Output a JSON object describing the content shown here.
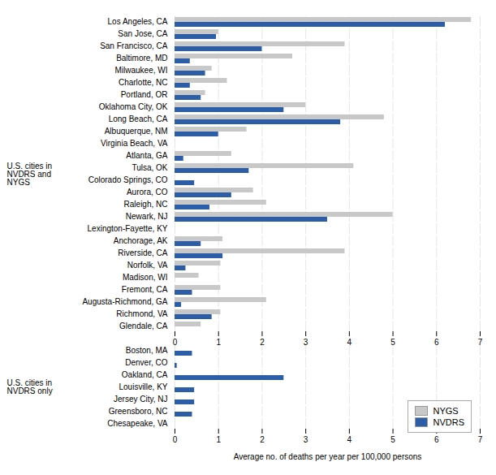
{
  "chart_data": {
    "type": "bar",
    "orientation": "horizontal",
    "categories": [
      "Los Angeles, CA",
      "San Jose, CA",
      "San Francisco, CA",
      "Baltimore, MD",
      "Milwaukee, WI",
      "Charlotte, NC",
      "Portland, OR",
      "Oklahoma City, OK",
      "Long Beach, CA",
      "Albuquerque, NM",
      "Virginia Beach, VA",
      "Atlanta, GA",
      "Tulsa, OK",
      "Colorado Springs, CO",
      "Aurora, CO",
      "Raleigh, NC",
      "Newark, NJ",
      "Lexington-Fayette, KY",
      "Anchorage, AK",
      "Riverside, CA",
      "Norfolk, VA",
      "Madison, WI",
      "Fremont, CA",
      "Augusta-Richmond, GA",
      "Richmond, VA",
      "Glendale, CA",
      "Boston, MA",
      "Denver, CO",
      "Oakland, CA",
      "Louisville, KY",
      "Jersey City, NJ",
      "Greensboro, NC",
      "Chesapeake, VA"
    ],
    "series": [
      {
        "name": "NYGS",
        "color": "#c8c8c8",
        "values": [
          6.8,
          1.0,
          3.9,
          2.7,
          0.85,
          1.2,
          0.7,
          3.0,
          4.8,
          1.65,
          0.0,
          1.3,
          4.1,
          0.0,
          1.8,
          2.1,
          5.0,
          0.0,
          1.1,
          3.9,
          1.05,
          0.55,
          1.05,
          2.1,
          1.05,
          0.6,
          0.0,
          0.0,
          0.0,
          0.0,
          0.0,
          0.0,
          0.0
        ]
      },
      {
        "name": "NVDRS",
        "color": "#2b5ea7",
        "values": [
          6.2,
          0.95,
          2.0,
          0.35,
          0.7,
          0.35,
          0.6,
          2.5,
          3.8,
          1.0,
          0.0,
          0.2,
          1.7,
          0.45,
          1.3,
          0.8,
          3.5,
          0.0,
          0.6,
          1.1,
          0.25,
          0.0,
          0.4,
          0.15,
          0.85,
          0.0,
          0.4,
          0.05,
          2.5,
          0.45,
          0.45,
          0.4,
          0.0
        ]
      }
    ],
    "xlabel": "Average no. of deaths per year per 100,000 persons",
    "xlim": [
      0,
      7
    ],
    "xticks": [
      0,
      1,
      2,
      3,
      4,
      5,
      6,
      7
    ],
    "grid": true,
    "legend": "lower right",
    "annotations": [
      {
        "text": "U.S. cities in\nNVDRS and\nNYGS",
        "from": "Los Angeles, CA",
        "to": "Glendale, CA"
      },
      {
        "text": "U.S. cities in\nNVDRS only",
        "from": "Boston, MA",
        "to": "Chesapeake, VA"
      }
    ]
  }
}
